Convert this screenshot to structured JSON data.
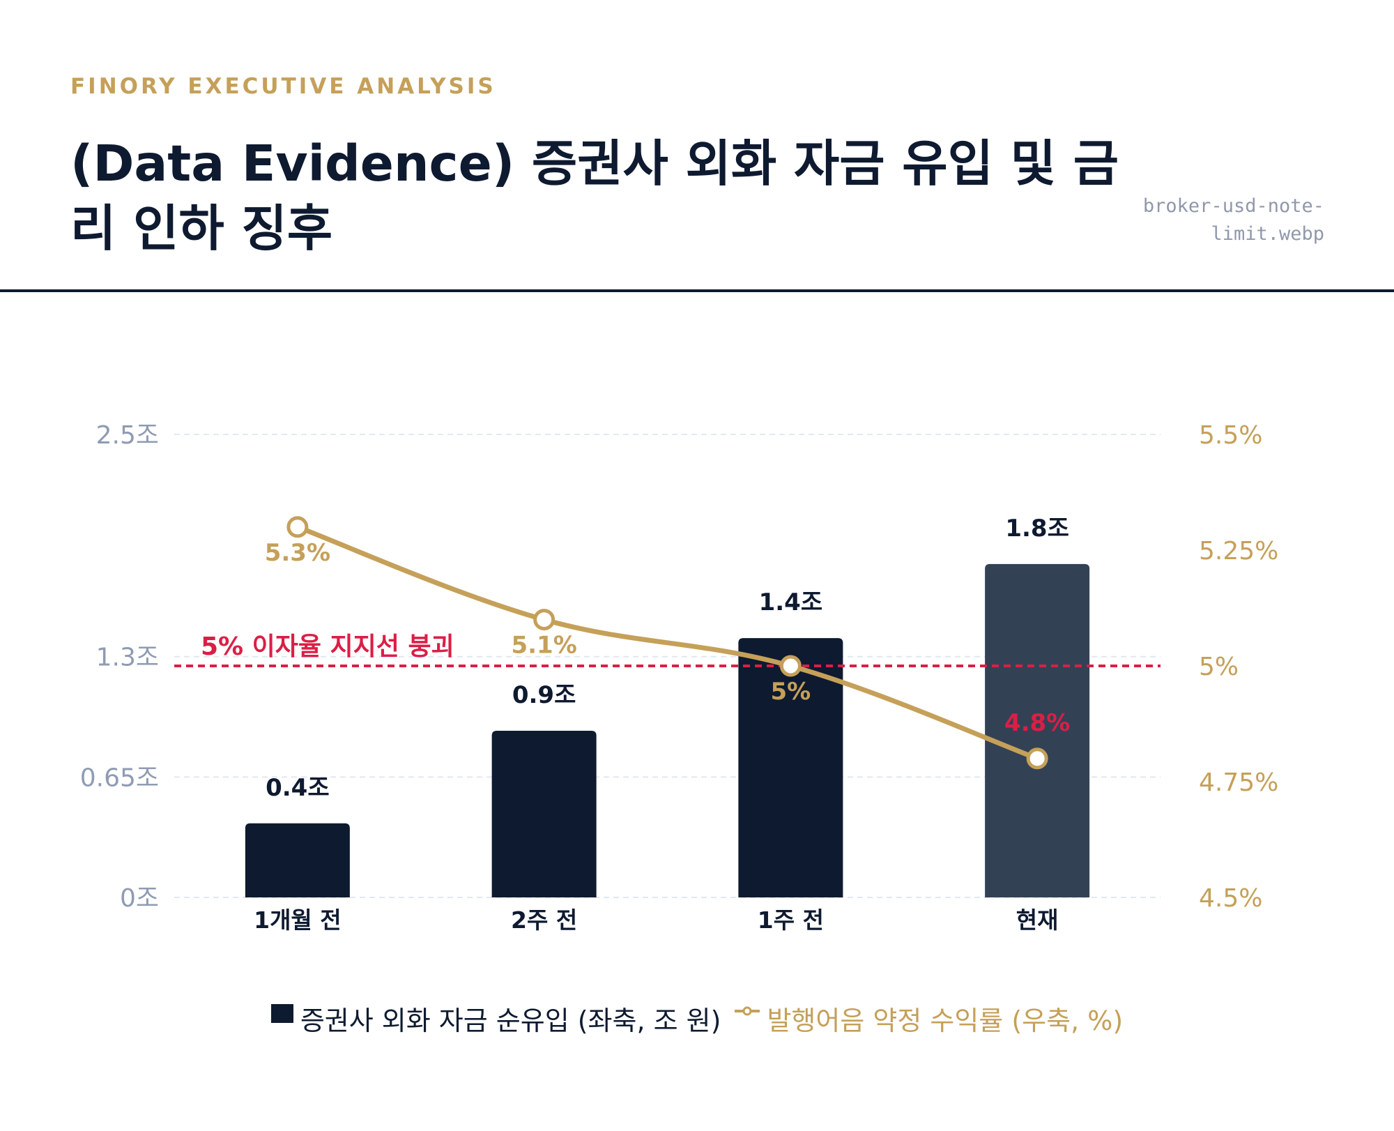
{
  "header": {
    "brand": "FINORY EXECUTIVE ANALYSIS",
    "title": "(Data Evidence) 증권사 외화 자금 유입 및 금리 인하 징후",
    "filename": "broker-usd-note-limit.webp"
  },
  "colors": {
    "navy": "#0e1a30",
    "slate": "#334155",
    "gold": "#c5a059",
    "red": "#dc1e46",
    "axis_gray": "#8f9bb3",
    "grid": "#e2e8f0"
  },
  "chart_data": {
    "type": "bar",
    "categories": [
      "1개월 전",
      "2주 전",
      "1주 전",
      "현재"
    ],
    "series": [
      {
        "name": "증권사 외화 자금 순유입 (좌축, 조 원)",
        "type": "bar",
        "axis": "left",
        "values": [
          0.4,
          0.9,
          1.4,
          1.8
        ],
        "labels": [
          "0.4조",
          "0.9조",
          "1.4조",
          "1.8조"
        ],
        "colors": [
          "#0e1a30",
          "#0e1a30",
          "#0e1a30",
          "#334155"
        ]
      },
      {
        "name": "발행어음 약정 수익률 (우축, %)",
        "type": "line",
        "axis": "right",
        "values": [
          5.3,
          5.1,
          5.0,
          4.8
        ],
        "labels": [
          "5.3%",
          "5.1%",
          "5%",
          "4.8%"
        ],
        "label_colors": [
          "#c5a059",
          "#c5a059",
          "#c5a059",
          "#dc1e46"
        ]
      }
    ],
    "y_left": {
      "ylim": [
        0,
        2.5
      ],
      "ticks": [
        0,
        0.65,
        1.3,
        2.5
      ],
      "tick_labels": [
        "0조",
        "0.65조",
        "1.3조",
        "2.5조"
      ]
    },
    "y_right": {
      "ylim": [
        4.5,
        5.5
      ],
      "ticks": [
        4.5,
        4.75,
        5.0,
        5.25,
        5.5
      ],
      "tick_labels": [
        "4.5%",
        "4.75%",
        "5%",
        "5.25%",
        "5.5%"
      ]
    },
    "reference_line": {
      "axis": "right",
      "value": 5.0,
      "label": "5% 이자율 지지선 붕괴",
      "style": "dashed"
    },
    "grid": true,
    "legend_position": "bottom"
  }
}
